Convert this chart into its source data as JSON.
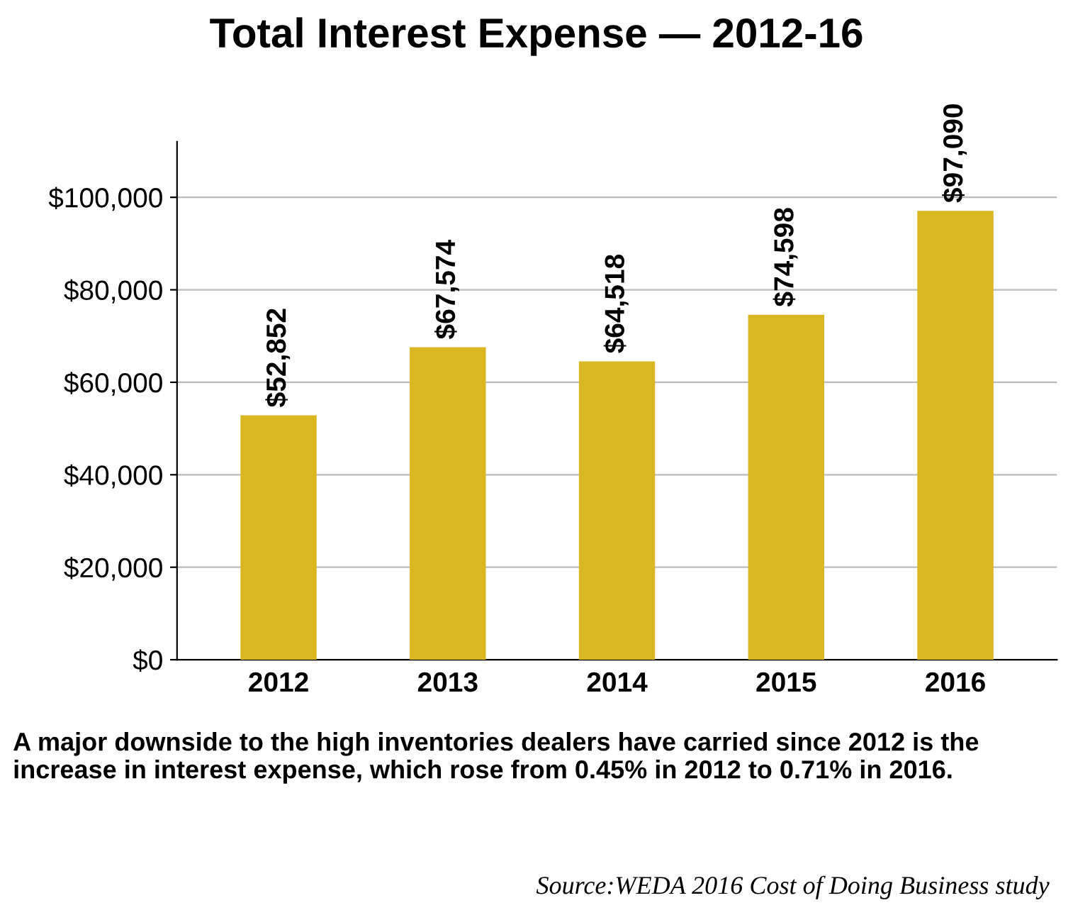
{
  "chart_data": {
    "type": "bar",
    "title": "Total Interest Expense — 2012-16",
    "categories": [
      "2012",
      "2013",
      "2014",
      "2015",
      "2016"
    ],
    "values": [
      52852,
      67574,
      64518,
      74598,
      97090
    ],
    "value_labels": [
      "$52,852",
      "$67,574",
      "$64,518",
      "$74,598",
      "$97,090"
    ],
    "color": "#d9b622",
    "ylim": [
      0,
      112000
    ],
    "yticks": [
      {
        "value": 0,
        "label": "$0"
      },
      {
        "value": 20000,
        "label": "$20,000"
      },
      {
        "value": 40000,
        "label": "$40,000"
      },
      {
        "value": 60000,
        "label": "$60,000"
      },
      {
        "value": 80000,
        "label": "$80,000"
      },
      {
        "value": 100000,
        "label": "$100,000"
      }
    ],
    "grid": "y",
    "annotations": [
      "A major downside to the high inventories dealers have carried since 2012 is the increase in interest expense, which rose from 0.45% in 2012 to 0.71% in 2016.",
      "Source:WEDA 2016 Cost of Doing Business study"
    ]
  }
}
